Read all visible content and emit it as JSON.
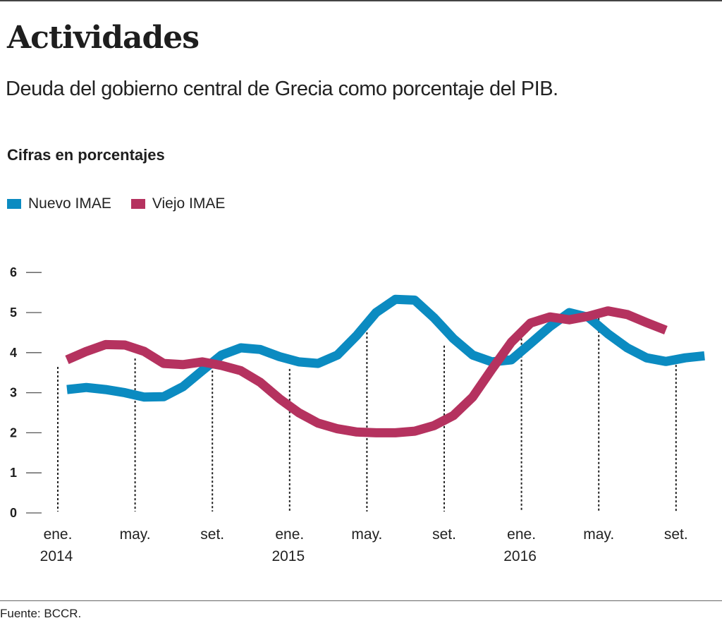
{
  "header": {
    "title": "Actividades",
    "subtitle": "Deuda del gobierno central de Grecia como porcentaje del PIB.",
    "units": "Cifras en porcentajes"
  },
  "legend": [
    {
      "label": "Nuevo IMAE",
      "color": "#0b8bc1"
    },
    {
      "label": "Viejo IMAE",
      "color": "#b5325f"
    }
  ],
  "footer": {
    "source": "Fuente: BCCR."
  },
  "chart_data": {
    "type": "line",
    "title": "Actividades",
    "subtitle": "Deuda del gobierno central de Grecia como porcentaje del PIB.",
    "ylabel": "Cifras en porcentajes",
    "xlabel": "",
    "ylim": [
      0,
      6
    ],
    "yticks": [
      0,
      1,
      2,
      3,
      4,
      5,
      6
    ],
    "grid": "vertical dotted lines at labeled months",
    "legend_position": "top-left",
    "x": [
      "ene. 2014",
      "feb. 2014",
      "mar. 2014",
      "abr. 2014",
      "may. 2014",
      "jun. 2014",
      "jul. 2014",
      "ago. 2014",
      "set. 2014",
      "oct. 2014",
      "nov. 2014",
      "dic. 2014",
      "ene. 2015",
      "feb. 2015",
      "mar. 2015",
      "abr. 2015",
      "may. 2015",
      "jun. 2015",
      "jul. 2015",
      "ago. 2015",
      "set. 2015",
      "oct. 2015",
      "nov. 2015",
      "dic. 2015",
      "ene. 2016",
      "feb. 2016",
      "mar. 2016",
      "abr. 2016",
      "may. 2016",
      "jun. 2016",
      "jul. 2016",
      "ago. 2016",
      "set. 2016",
      "oct. 2016"
    ],
    "xticks": [
      {
        "index": 0,
        "label": "ene.",
        "year": "2014"
      },
      {
        "index": 4,
        "label": "may.",
        "year": ""
      },
      {
        "index": 8,
        "label": "set.",
        "year": ""
      },
      {
        "index": 12,
        "label": "ene.",
        "year": "2015"
      },
      {
        "index": 16,
        "label": "may.",
        "year": ""
      },
      {
        "index": 20,
        "label": "set.",
        "year": ""
      },
      {
        "index": 24,
        "label": "ene.",
        "year": "2016"
      },
      {
        "index": 28,
        "label": "may.",
        "year": ""
      },
      {
        "index": 32,
        "label": "set.",
        "year": ""
      }
    ],
    "series": [
      {
        "name": "Nuevo IMAE",
        "color": "#0b8bc1",
        "values": [
          3.08,
          3.13,
          3.08,
          3.0,
          2.89,
          2.9,
          3.15,
          3.55,
          3.94,
          4.12,
          4.08,
          3.9,
          3.77,
          3.73,
          3.94,
          4.43,
          5.0,
          5.33,
          5.31,
          4.87,
          4.35,
          3.94,
          3.77,
          3.82,
          4.23,
          4.65,
          5.0,
          4.88,
          4.47,
          4.12,
          3.87,
          3.78,
          3.87,
          3.92
        ]
      },
      {
        "name": "Viejo IMAE",
        "color": "#b5325f",
        "values": [
          3.82,
          4.03,
          4.2,
          4.19,
          4.03,
          3.73,
          3.7,
          3.77,
          3.68,
          3.55,
          3.26,
          2.85,
          2.5,
          2.24,
          2.1,
          2.02,
          2.0,
          2.0,
          2.04,
          2.18,
          2.43,
          2.89,
          3.59,
          4.26,
          4.74,
          4.89,
          4.82,
          4.91,
          5.04,
          4.95,
          4.75,
          4.56
        ]
      }
    ]
  }
}
